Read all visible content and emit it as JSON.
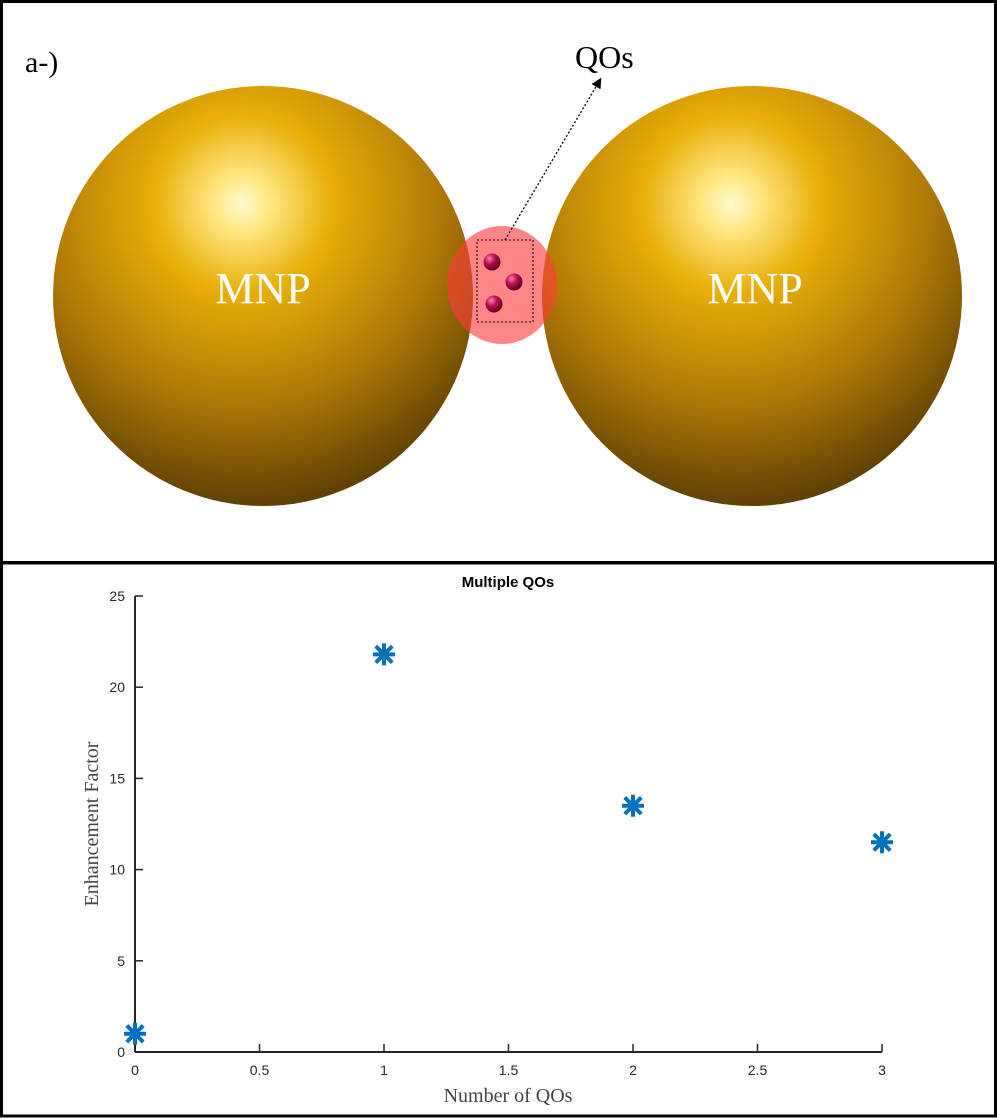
{
  "panel_a": {
    "label": "a-)",
    "qd_label": "QOs",
    "left_sphere_label": "MNP",
    "right_sphere_label": "MNP",
    "colors": {
      "sphere_gold": "#e0a000",
      "gap_region": "#ff4a4a",
      "qd_particle": "#c0104f"
    }
  },
  "chart_data": {
    "type": "scatter",
    "title": "Multiple QOs",
    "xlabel": "Number of QOs",
    "ylabel": "Enhancement Factor",
    "xlim": [
      0,
      3
    ],
    "ylim": [
      0,
      25
    ],
    "xticks": [
      0,
      0.5,
      1,
      1.5,
      2,
      2.5,
      3
    ],
    "xtick_labels": [
      "0",
      "0.5",
      "1",
      "1.5",
      "2",
      "2.5",
      "3"
    ],
    "yticks": [
      0,
      5,
      10,
      15,
      20,
      25
    ],
    "ytick_labels": [
      "0",
      "5",
      "10",
      "15",
      "20",
      "25"
    ],
    "marker": "asterisk",
    "marker_color": "#0072bd",
    "grid": false,
    "series": [
      {
        "x": [
          0,
          1,
          2,
          3
        ],
        "y": [
          1,
          21.8,
          13.5,
          11.5
        ]
      }
    ]
  }
}
